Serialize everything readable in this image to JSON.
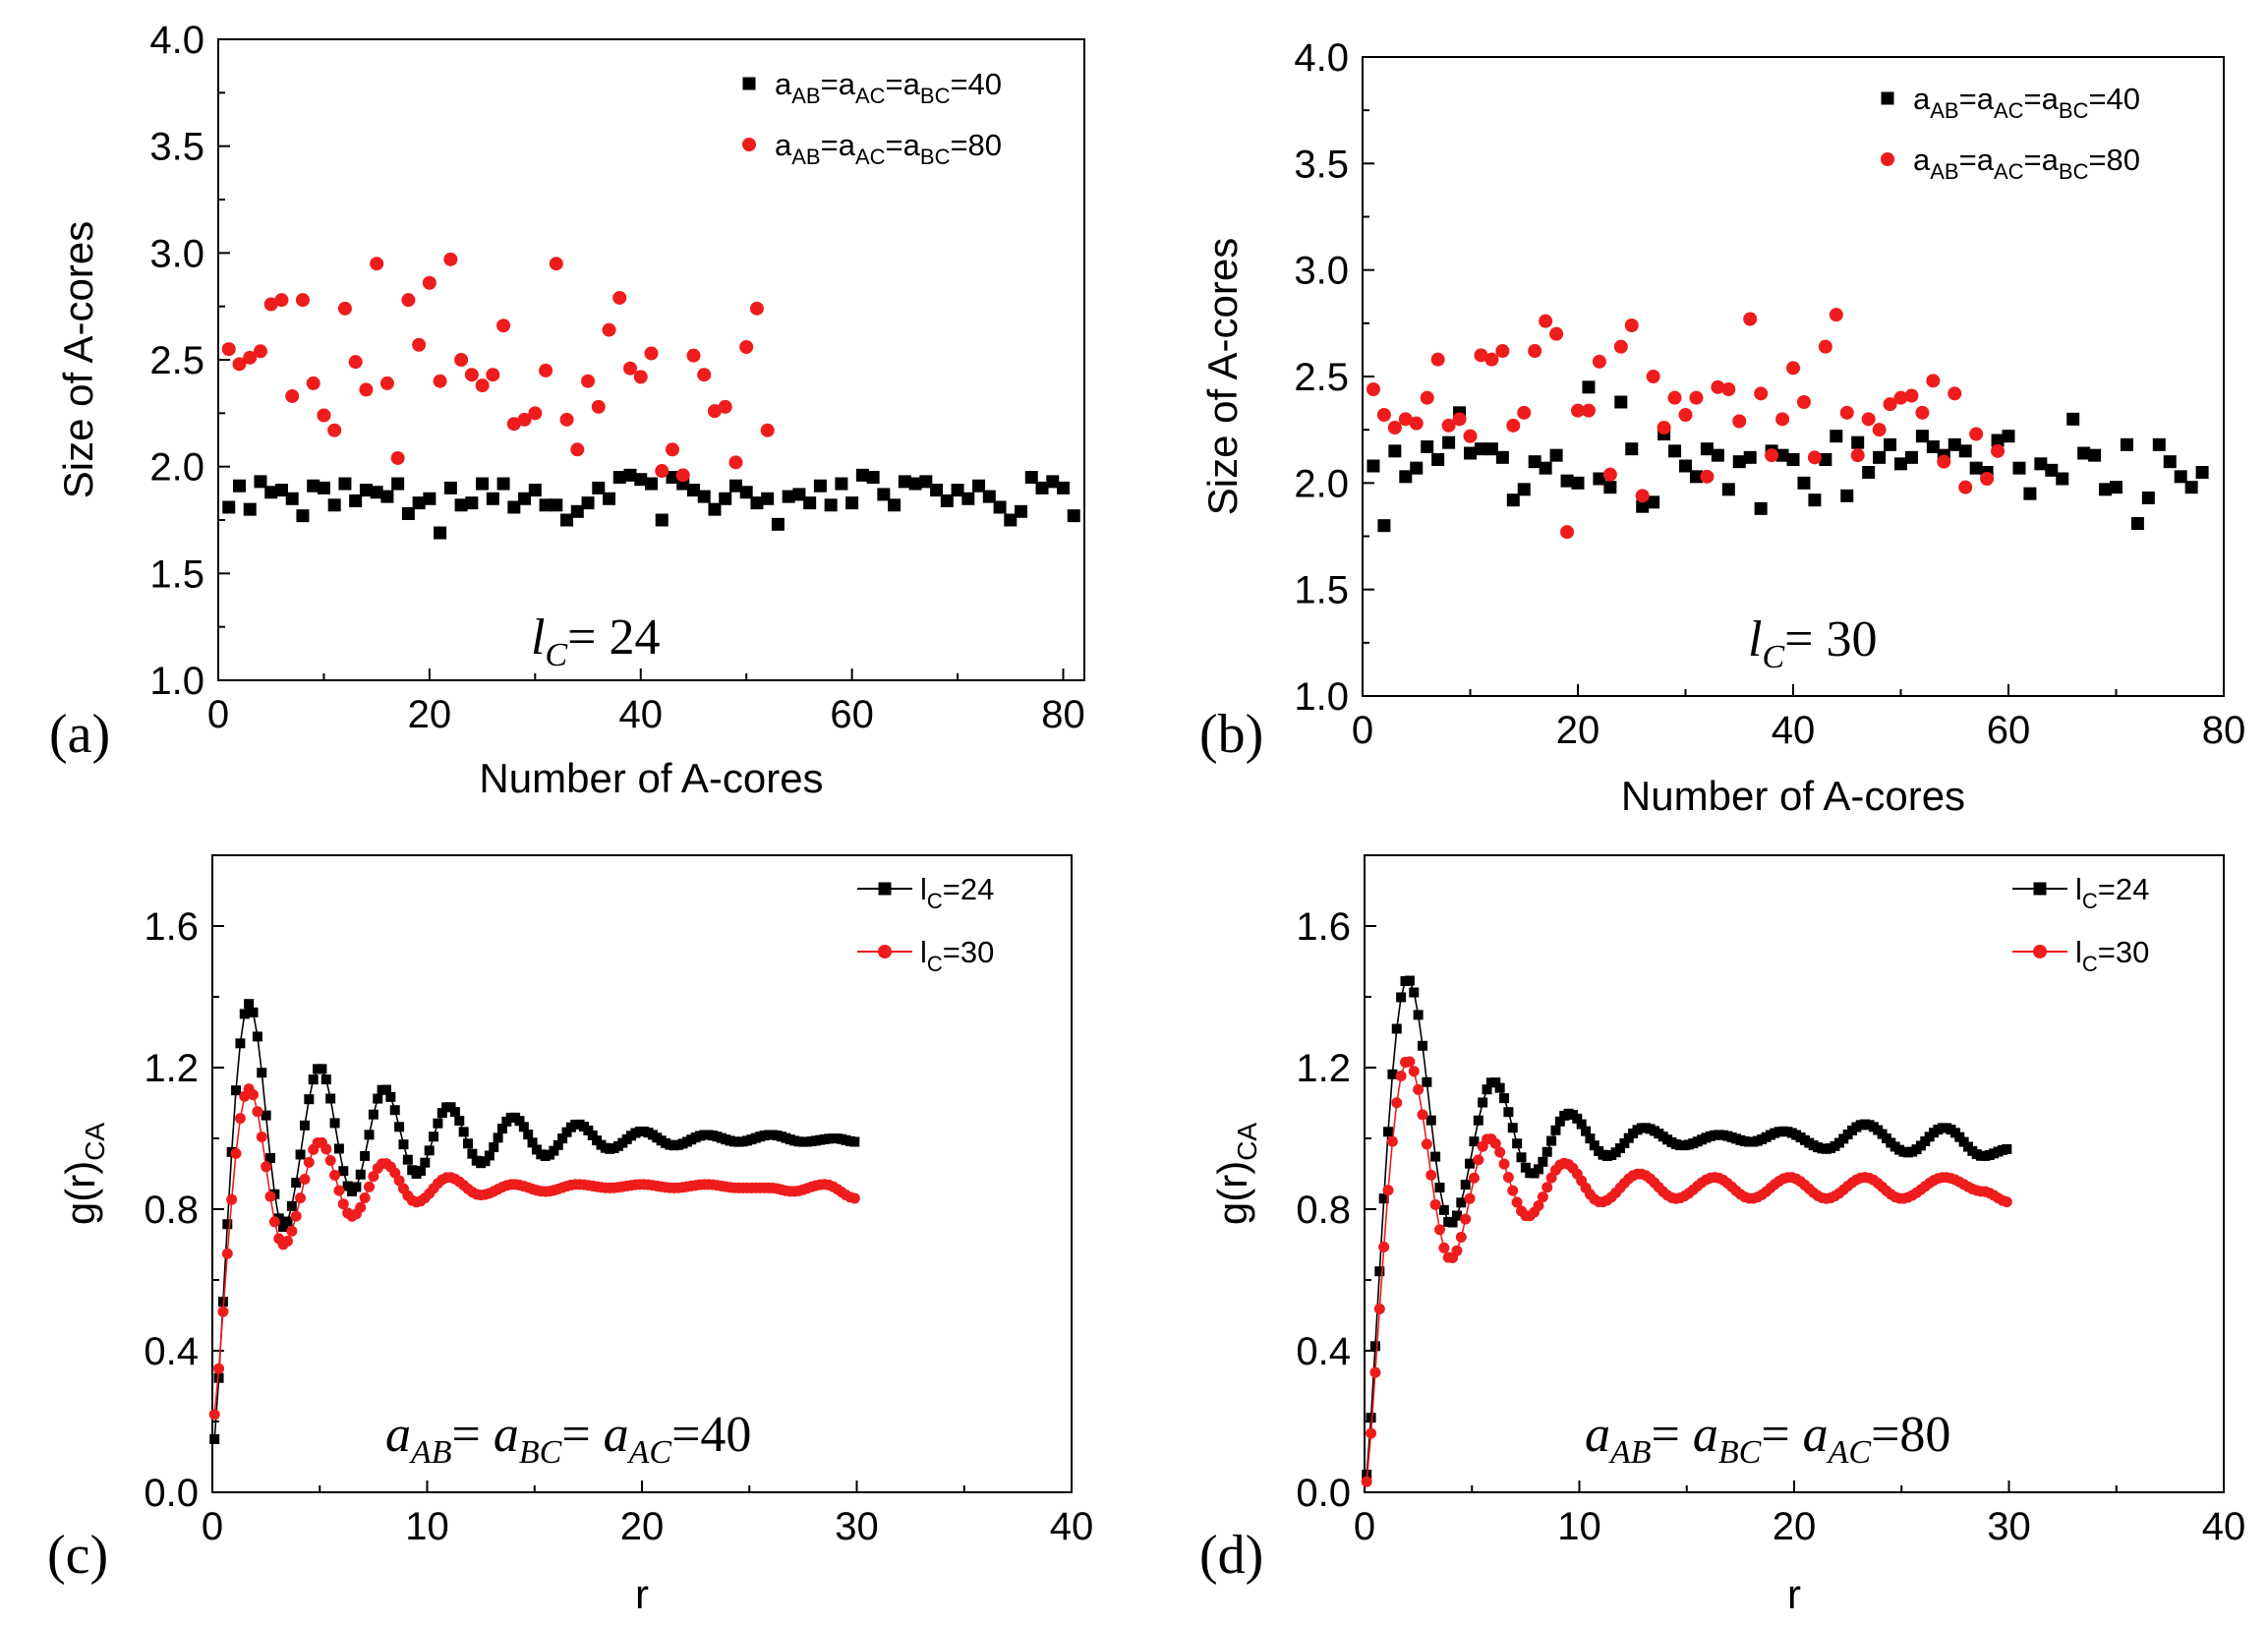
{
  "chart_data": [
    {
      "panel": "a",
      "type": "scatter",
      "xlabel": "Number of A-cores",
      "ylabel": "Size of A-cores",
      "xlim": [
        0,
        82
      ],
      "ylim": [
        1.0,
        4.0
      ],
      "xticks": [
        "0",
        "20",
        "40",
        "60",
        "80"
      ],
      "yticks": [
        "1.0",
        "1.5",
        "2.0",
        "2.5",
        "3.0",
        "3.5",
        "4.0"
      ],
      "annotation": {
        "var": "l",
        "sub": "C",
        "rest": "= 24"
      },
      "legend": "top-right",
      "series": [
        {
          "name": {
            "main": "a",
            "parts": [
              [
                "AB",
                "=a"
              ],
              [
                "AC",
                "=a"
              ],
              [
                "BC",
                "=40"
              ]
            ]
          },
          "color": "#000000",
          "marker": "square",
          "values": [
            1.81,
            1.91,
            1.8,
            1.93,
            1.88,
            1.89,
            1.85,
            1.77,
            1.91,
            1.9,
            1.82,
            1.92,
            1.84,
            1.89,
            1.88,
            1.86,
            1.92,
            1.78,
            1.83,
            1.85,
            1.69,
            1.9,
            1.82,
            1.83,
            1.92,
            1.85,
            1.92,
            1.81,
            1.85,
            1.89,
            1.82,
            1.82,
            1.75,
            1.79,
            1.83,
            1.9,
            1.85,
            1.95,
            1.96,
            1.94,
            1.92,
            1.75,
            1.95,
            1.92,
            1.89,
            1.86,
            1.8,
            1.85,
            1.91,
            1.88,
            1.83,
            1.85,
            1.73,
            1.86,
            1.87,
            1.83,
            1.91,
            1.82,
            1.92,
            1.83,
            1.96,
            1.95,
            1.87,
            1.82,
            1.93,
            1.92,
            1.93,
            1.89,
            1.84,
            1.89,
            1.85,
            1.91,
            1.86,
            1.81,
            1.75,
            1.79,
            1.95,
            1.9,
            1.93,
            1.9,
            1.77
          ]
        },
        {
          "name": {
            "main": "a",
            "parts": [
              [
                "AB",
                "=a"
              ],
              [
                "AC",
                "=a"
              ],
              [
                "BC",
                "=80"
              ]
            ]
          },
          "color": "#ee1c1c",
          "marker": "circle",
          "values": [
            2.55,
            2.48,
            2.51,
            2.54,
            2.76,
            2.78,
            2.33,
            2.78,
            2.39,
            2.24,
            2.17,
            2.74,
            2.49,
            2.36,
            2.95,
            2.39,
            2.04,
            2.78,
            2.57,
            2.86,
            2.4,
            2.97,
            2.5,
            2.43,
            2.38,
            2.43,
            2.66,
            2.2,
            2.22,
            2.25,
            2.45,
            2.95,
            2.22,
            2.08,
            2.4,
            2.28,
            2.64,
            2.79,
            2.46,
            2.42,
            2.53,
            1.98,
            2.08,
            1.96,
            2.52,
            2.43,
            2.26,
            2.28,
            2.02,
            2.56,
            2.74,
            2.17
          ]
        }
      ]
    },
    {
      "panel": "b",
      "type": "scatter",
      "xlabel": "Number of A-cores",
      "ylabel": "Size of A-cores",
      "xlim": [
        0,
        80
      ],
      "ylim": [
        1.0,
        4.0
      ],
      "xticks": [
        "0",
        "20",
        "40",
        "60",
        "80"
      ],
      "yticks": [
        "1.0",
        "1.5",
        "2.0",
        "2.5",
        "3.0",
        "3.5",
        "4.0"
      ],
      "annotation": {
        "var": "l",
        "sub": "C",
        "rest": "= 30"
      },
      "legend": "top-right",
      "series": [
        {
          "name": {
            "main": "a",
            "parts": [
              [
                "AB",
                "=a"
              ],
              [
                "AC",
                "=a"
              ],
              [
                "BC",
                "=40"
              ]
            ]
          },
          "color": "#000000",
          "marker": "square",
          "values": [
            2.08,
            1.8,
            2.15,
            2.03,
            2.07,
            2.17,
            2.11,
            2.19,
            2.33,
            2.14,
            2.16,
            2.16,
            2.12,
            1.92,
            1.97,
            2.1,
            2.07,
            2.13,
            2.01,
            2.0,
            2.45,
            2.02,
            1.98,
            2.38,
            2.16,
            1.89,
            1.91,
            2.23,
            2.15,
            2.08,
            2.03,
            2.16,
            2.13,
            1.97,
            2.1,
            2.12,
            1.88,
            2.15,
            2.13,
            2.11,
            2.0,
            1.92,
            2.11,
            2.22,
            1.94,
            2.19,
            2.05,
            2.12,
            2.18,
            2.09,
            2.12,
            2.22,
            2.17,
            2.13,
            2.18,
            2.15,
            2.07,
            2.05,
            2.2,
            2.22,
            2.07,
            1.95,
            2.09,
            2.06,
            2.02,
            2.3,
            2.14,
            2.13,
            1.97,
            1.98,
            2.18,
            1.81,
            1.93,
            2.18,
            2.1,
            2.03,
            1.98,
            2.05
          ]
        },
        {
          "name": {
            "main": "a",
            "parts": [
              [
                "AB",
                "=a"
              ],
              [
                "AC",
                "=a"
              ],
              [
                "BC",
                "=80"
              ]
            ]
          },
          "color": "#ee1c1c",
          "marker": "circle",
          "values": [
            2.44,
            2.32,
            2.26,
            2.3,
            2.28,
            2.4,
            2.58,
            2.27,
            2.3,
            2.22,
            2.6,
            2.58,
            2.62,
            2.27,
            2.33,
            2.62,
            2.76,
            2.7,
            1.77,
            2.34,
            2.34,
            2.57,
            2.04,
            2.64,
            2.74,
            1.94,
            2.5,
            2.26,
            2.4,
            2.32,
            2.4,
            2.03,
            2.45,
            2.44,
            2.29,
            2.77,
            2.42,
            2.13,
            2.3,
            2.54,
            2.38,
            2.12,
            2.64,
            2.79,
            2.33,
            2.13,
            2.3,
            2.25,
            2.37,
            2.4,
            2.41,
            2.33,
            2.48,
            2.1,
            2.42,
            1.98,
            2.23,
            2.02,
            2.15
          ]
        }
      ]
    },
    {
      "panel": "c",
      "type": "line",
      "xlabel": "r",
      "ylabel": {
        "main": "g(r)",
        "sub": "CA"
      },
      "xlim": [
        0,
        40
      ],
      "ylim": [
        0.0,
        1.8
      ],
      "xticks": [
        "0",
        "10",
        "20",
        "30",
        "40"
      ],
      "yticks": [
        "0.0",
        "0.4",
        "0.8",
        "1.2",
        "1.6"
      ],
      "annotation": "a_AB= a_BC= a_AC=40",
      "annotation_parts": {
        "a": "a",
        "s1": "AB",
        "e1": "= ",
        "s2": "BC",
        "e2": "= ",
        "s3": "AC",
        "e3": "=40"
      },
      "legend": "top-right",
      "x_start": 0.1,
      "x_step": 0.2,
      "series": [
        {
          "name": {
            "main": "l",
            "sub": "C",
            "rest": "=24"
          },
          "color": "#000000",
          "marker": "square",
          "peaks": [
            [
              1.7,
              1.38
            ],
            [
              5.0,
              1.2
            ],
            [
              8.0,
              1.14
            ],
            [
              11.0,
              1.09
            ],
            [
              14.0,
              1.06
            ],
            [
              17.0,
              1.04
            ],
            [
              20.0,
              1.02
            ],
            [
              23.0,
              1.01
            ],
            [
              26.0,
              1.01
            ],
            [
              29.0,
              1.0
            ]
          ],
          "troughs": [
            [
              3.3,
              0.75
            ],
            [
              6.5,
              0.85
            ],
            [
              9.5,
              0.9
            ],
            [
              12.5,
              0.93
            ],
            [
              15.5,
              0.95
            ],
            [
              18.5,
              0.97
            ],
            [
              21.5,
              0.98
            ],
            [
              24.5,
              0.99
            ],
            [
              27.5,
              0.99
            ]
          ],
          "end": [
            30.0,
            0.99
          ],
          "start_value": 0.15
        },
        {
          "name": {
            "main": "l",
            "sub": "C",
            "rest": "=30"
          },
          "color": "#ee1c1c",
          "marker": "circle",
          "peaks": [
            [
              1.7,
              1.14
            ],
            [
              5.0,
              0.99
            ],
            [
              8.0,
              0.93
            ],
            [
              11.0,
              0.89
            ],
            [
              14.0,
              0.87
            ],
            [
              17.0,
              0.87
            ],
            [
              20.0,
              0.87
            ],
            [
              23.0,
              0.87
            ],
            [
              26.0,
              0.86
            ],
            [
              28.5,
              0.87
            ]
          ],
          "troughs": [
            [
              3.3,
              0.7
            ],
            [
              6.5,
              0.78
            ],
            [
              9.5,
              0.82
            ],
            [
              12.5,
              0.84
            ],
            [
              15.5,
              0.85
            ],
            [
              18.5,
              0.86
            ],
            [
              21.5,
              0.86
            ],
            [
              24.5,
              0.86
            ],
            [
              27.0,
              0.85
            ]
          ],
          "end": [
            30.0,
            0.83
          ],
          "start_value": 0.22
        }
      ]
    },
    {
      "panel": "d",
      "type": "line",
      "xlabel": "r",
      "ylabel": {
        "main": "g(r)",
        "sub": "CA"
      },
      "xlim": [
        0,
        40
      ],
      "ylim": [
        0.0,
        1.8
      ],
      "xticks": [
        "0",
        "10",
        "20",
        "30",
        "40"
      ],
      "yticks": [
        "0.0",
        "0.4",
        "0.8",
        "1.2",
        "1.6"
      ],
      "annotation": "a_AB= a_BC= a_AC=80",
      "annotation_parts": {
        "a": "a",
        "s1": "AB",
        "e1": "= ",
        "s2": "BC",
        "e2": "= ",
        "s3": "AC",
        "e3": "=80"
      },
      "legend": "top-right",
      "x_start": 0.1,
      "x_step": 0.2,
      "series": [
        {
          "name": {
            "main": "l",
            "sub": "C",
            "rest": "=24"
          },
          "color": "#000000",
          "marker": "square",
          "peaks": [
            [
              2.0,
              1.45
            ],
            [
              6.0,
              1.16
            ],
            [
              9.5,
              1.07
            ],
            [
              13.0,
              1.03
            ],
            [
              16.5,
              1.01
            ],
            [
              19.5,
              1.02
            ],
            [
              23.3,
              1.04
            ],
            [
              27.0,
              1.03
            ],
            [
              30.0,
              0.97
            ]
          ],
          "troughs": [
            [
              4.0,
              0.76
            ],
            [
              7.8,
              0.9
            ],
            [
              11.3,
              0.95
            ],
            [
              14.8,
              0.98
            ],
            [
              18.0,
              0.99
            ],
            [
              21.5,
              0.97
            ],
            [
              25.3,
              0.96
            ],
            [
              28.8,
              0.95
            ]
          ],
          "end": [
            30.0,
            0.97
          ],
          "start_value": 0.05
        },
        {
          "name": {
            "main": "l",
            "sub": "C",
            "rest": "=30"
          },
          "color": "#ee1c1c",
          "marker": "circle",
          "peaks": [
            [
              2.0,
              1.22
            ],
            [
              5.8,
              1.0
            ],
            [
              9.3,
              0.93
            ],
            [
              12.8,
              0.9
            ],
            [
              16.3,
              0.89
            ],
            [
              19.8,
              0.89
            ],
            [
              23.3,
              0.89
            ],
            [
              27.0,
              0.89
            ]
          ],
          "troughs": [
            [
              4.0,
              0.66
            ],
            [
              7.6,
              0.78
            ],
            [
              11.0,
              0.82
            ],
            [
              14.5,
              0.83
            ],
            [
              18.0,
              0.83
            ],
            [
              21.5,
              0.83
            ],
            [
              25.0,
              0.83
            ],
            [
              28.8,
              0.85
            ]
          ],
          "end": [
            30.0,
            0.82
          ],
          "start_value": 0.03
        }
      ]
    }
  ]
}
